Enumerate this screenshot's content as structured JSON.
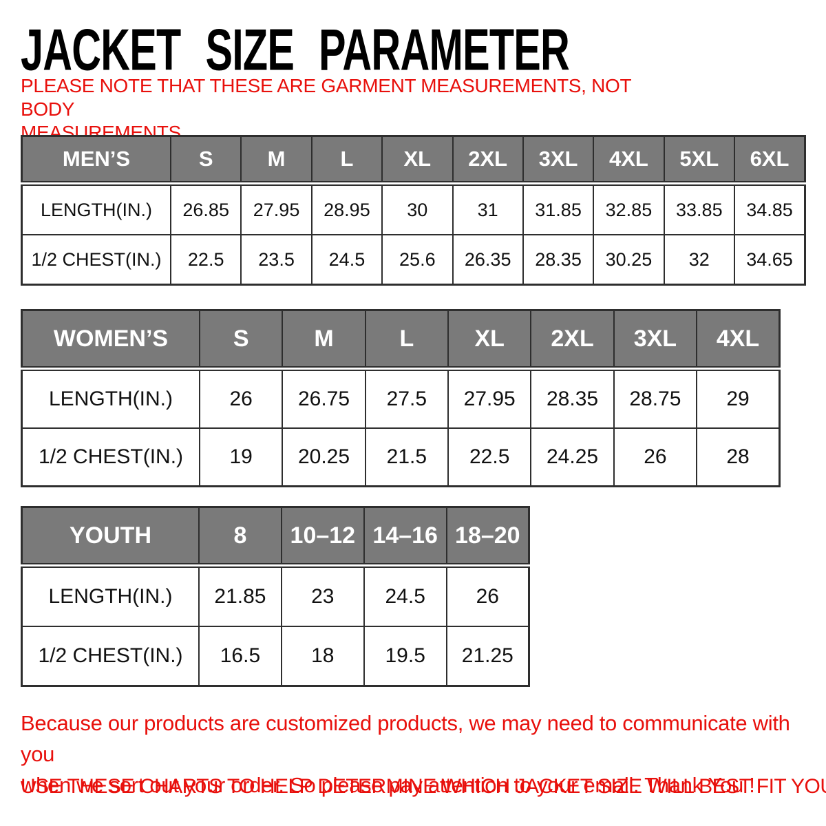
{
  "title": "JACKET SIZE PARAMETER",
  "note_lines": [
    "PLEASE NOTE THAT THESE ARE GARMENT MEASUREMENTS, NOT BODY",
    "MEASUREMENTS"
  ],
  "chart_data": [
    {
      "type": "table",
      "name": "mens-size-table",
      "columns": [
        "MEN’S",
        "S",
        "M",
        "L",
        "XL",
        "2XL",
        "3XL",
        "4XL",
        "5XL",
        "6XL"
      ],
      "rows": [
        [
          "LENGTH(IN.)",
          "26.85",
          "27.95",
          "28.95",
          "30",
          "31",
          "31.85",
          "32.85",
          "33.85",
          "34.85"
        ],
        [
          "1/2 CHEST(IN.)",
          "22.5",
          "23.5",
          "24.5",
          "25.6",
          "26.35",
          "28.35",
          "30.25",
          "32",
          "34.65"
        ]
      ]
    },
    {
      "type": "table",
      "name": "womens-size-table",
      "columns": [
        "WOMEN’S",
        "S",
        "M",
        "L",
        "XL",
        "2XL",
        "3XL",
        "4XL"
      ],
      "rows": [
        [
          "LENGTH(IN.)",
          "26",
          "26.75",
          "27.5",
          "27.95",
          "28.35",
          "28.75",
          "29"
        ],
        [
          "1/2 CHEST(IN.)",
          "19",
          "20.25",
          "21.5",
          "22.5",
          "24.25",
          "26",
          "28"
        ]
      ]
    },
    {
      "type": "table",
      "name": "youth-size-table",
      "columns": [
        "YOUTH",
        "8",
        "10–12",
        "14–16",
        "18–20"
      ],
      "rows": [
        [
          "LENGTH(IN.)",
          "21.85",
          "23",
          "24.5",
          "26"
        ],
        [
          "1/2 CHEST(IN.)",
          "16.5",
          "18",
          "19.5",
          "21.25"
        ]
      ]
    }
  ],
  "footer": {
    "lines": [
      "Because our products are customized products, we may need to communicate with you",
      "when we sort out your order. So please pay attention to your email. Thank You !"
    ],
    "advice": "USE THESE CHARTS TO HELP DETERMINE WHICH JACKET SIZE WILL BEST FIT YOU."
  },
  "colors": {
    "accent_red": "#e8100c",
    "header_gray": "#7a7a7a",
    "border_dark": "#2e2e2e"
  }
}
